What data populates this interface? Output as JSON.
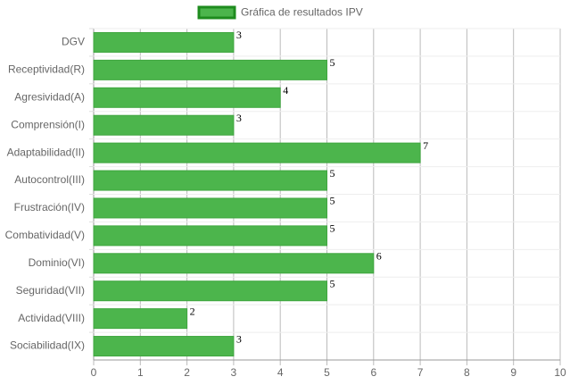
{
  "chart_data": {
    "type": "bar",
    "orientation": "horizontal",
    "categories": [
      "DGV",
      "Receptividad(R)",
      "Agresividad(A)",
      "Comprensión(I)",
      "Adaptabilidad(II)",
      "Autocontrol(III)",
      "Frustración(IV)",
      "Combatividad(V)",
      "Dominio(VI)",
      "Seguridad(VII)",
      "Actividad(VIII)",
      "Sociabilidad(IX)"
    ],
    "series": [
      {
        "name": "Gráfica de resultados IPV",
        "color": "#4cb54c",
        "values": [
          3,
          5,
          4,
          3,
          7,
          5,
          5,
          5,
          6,
          5,
          2,
          3
        ]
      }
    ],
    "xlim": [
      0,
      10
    ],
    "xticks": [
      0,
      1,
      2,
      3,
      4,
      5,
      6,
      7,
      8,
      9,
      10
    ],
    "grid": true,
    "legend": "top"
  }
}
